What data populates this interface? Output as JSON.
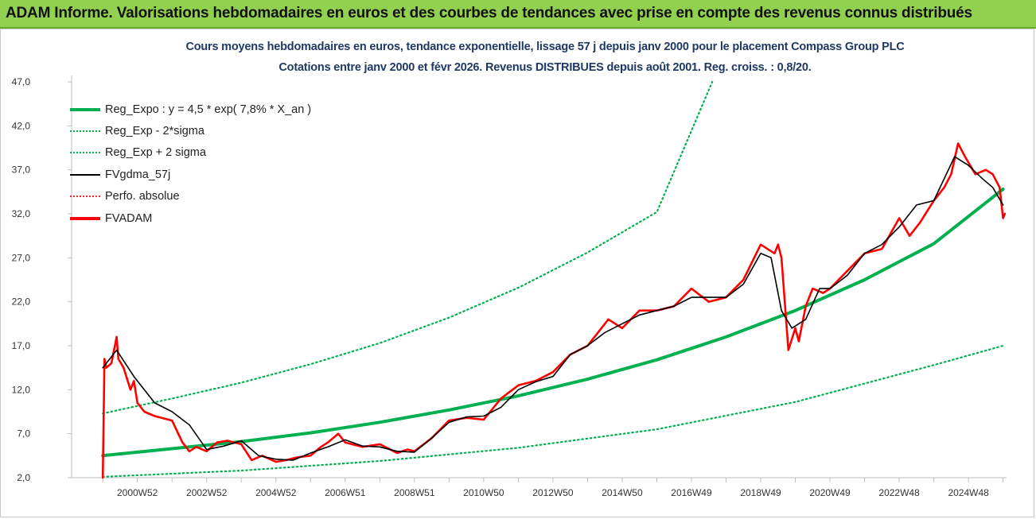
{
  "banner": {
    "title": "ADAM Informe. Valorisations hebdomadaires en euros et des courbes de tendances avec prise en compte des revenus connus distribués"
  },
  "chart_data": {
    "type": "line",
    "title": "Cours moyens hebdomadaires en euros, tendance exponentielle, lissage 57 j depuis janv 2000 pour le placement Compass Group PLC",
    "subtitle": "Cotations entre janv 2000 et févr 2026. Revenus DISTRIBUES depuis août 2001. Reg. croiss. : 0,8/20.",
    "y_ticks": [
      "2,0",
      "7,0",
      "12,0",
      "17,0",
      "22,0",
      "27,0",
      "32,0",
      "37,0",
      "42,0",
      "47,0"
    ],
    "ylim": [
      2,
      47
    ],
    "x_ticks": [
      "2000W52",
      "2002W52",
      "2004W52",
      "2006W51",
      "2008W51",
      "2010W50",
      "2012W50",
      "2014W50",
      "2016W49",
      "2018W49",
      "2020W49",
      "2022W48",
      "2024W48"
    ],
    "xlim": [
      1999.1,
      2026.1
    ],
    "legend_position": "top-left",
    "grid": false,
    "series": [
      {
        "name": "Reg_Expo : y = 4,5 * exp( 7,8% *  X_an )",
        "color": "#00b050",
        "style": "solid-thick",
        "x": [
          2000.0,
          2002.0,
          2004.0,
          2006.0,
          2008.0,
          2010.0,
          2012.0,
          2014.0,
          2016.0,
          2018.0,
          2020.0,
          2022.0,
          2024.0,
          2026.0
        ],
        "values": [
          4.5,
          5.3,
          6.1,
          7.1,
          8.3,
          9.7,
          11.3,
          13.2,
          15.4,
          18.0,
          21.0,
          24.5,
          28.6,
          34.8
        ]
      },
      {
        "name": "Reg_Exp - 2*sigma",
        "color": "#00b050",
        "style": "dotted",
        "x": [
          2000.0,
          2004.0,
          2008.0,
          2012.0,
          2016.0,
          2020.0,
          2024.0,
          2026.0
        ],
        "values": [
          2.1,
          2.8,
          3.9,
          5.4,
          7.5,
          10.6,
          14.8,
          17.0
        ]
      },
      {
        "name": "Reg_Exp + 2 sigma",
        "color": "#00b050",
        "style": "dotted",
        "x": [
          2000.0,
          2002.0,
          2004.0,
          2006.0,
          2008.0,
          2010.0,
          2012.0,
          2014.0,
          2016.0,
          2017.6
        ],
        "values": [
          9.3,
          11.0,
          12.8,
          14.9,
          17.3,
          20.2,
          23.6,
          27.6,
          32.2,
          47.0
        ]
      },
      {
        "name": "FVgdma_57j",
        "color": "#000000",
        "style": "solid",
        "x": [
          2000.0,
          2000.4,
          2000.9,
          2001.5,
          2002.0,
          2002.5,
          2003.0,
          2003.5,
          2004.0,
          2004.5,
          2005.0,
          2005.5,
          2006.0,
          2006.5,
          2007.0,
          2007.5,
          2008.0,
          2008.5,
          2009.0,
          2009.5,
          2010.0,
          2010.5,
          2011.0,
          2011.5,
          2012.0,
          2012.5,
          2013.0,
          2013.5,
          2014.0,
          2014.5,
          2015.0,
          2015.5,
          2016.0,
          2016.5,
          2017.0,
          2017.5,
          2018.0,
          2018.5,
          2019.0,
          2019.3,
          2019.6,
          2019.9,
          2020.3,
          2020.7,
          2021.0,
          2021.5,
          2022.0,
          2022.5,
          2023.0,
          2023.5,
          2024.0,
          2024.3,
          2024.6,
          2025.0,
          2025.4,
          2025.7,
          2026.0
        ],
        "values": [
          14.5,
          16.5,
          13.5,
          10.5,
          9.5,
          8.0,
          5.2,
          5.6,
          6.2,
          4.5,
          4.1,
          4.0,
          4.8,
          5.5,
          6.3,
          5.6,
          5.5,
          5.0,
          4.9,
          6.5,
          8.3,
          8.9,
          9.0,
          10.0,
          12.0,
          12.9,
          13.5,
          16.0,
          17.0,
          18.5,
          19.5,
          20.5,
          21.0,
          21.5,
          22.5,
          22.5,
          22.5,
          24.0,
          27.5,
          27.0,
          21.0,
          19.0,
          20.0,
          23.5,
          23.5,
          25.0,
          27.5,
          28.5,
          30.5,
          33.0,
          33.5,
          36.0,
          38.5,
          37.5,
          36.0,
          35.0,
          33.0
        ]
      },
      {
        "name": "Perfo. absolue",
        "color": "#e8302a",
        "style": "dotted",
        "x": [],
        "values": []
      },
      {
        "name": "FVADAM",
        "color": "#ff0000",
        "style": "solid-thick",
        "x": [
          2000.0,
          2000.05,
          2000.1,
          2000.25,
          2000.4,
          2000.45,
          2000.6,
          2000.8,
          2000.9,
          2001.0,
          2001.2,
          2001.5,
          2002.0,
          2002.3,
          2002.5,
          2002.7,
          2003.0,
          2003.3,
          2003.6,
          2004.0,
          2004.3,
          2004.6,
          2005.0,
          2005.3,
          2005.6,
          2006.0,
          2006.3,
          2006.5,
          2006.8,
          2007.0,
          2007.5,
          2008.0,
          2008.5,
          2008.8,
          2009.0,
          2009.5,
          2010.0,
          2010.5,
          2011.0,
          2011.5,
          2012.0,
          2012.5,
          2013.0,
          2013.5,
          2014.0,
          2014.3,
          2014.6,
          2015.0,
          2015.5,
          2016.0,
          2016.5,
          2017.0,
          2017.5,
          2018.0,
          2018.5,
          2019.0,
          2019.2,
          2019.4,
          2019.5,
          2019.6,
          2019.8,
          2020.0,
          2020.1,
          2020.3,
          2020.5,
          2020.8,
          2021.0,
          2021.5,
          2022.0,
          2022.5,
          2023.0,
          2023.3,
          2023.6,
          2024.0,
          2024.3,
          2024.5,
          2024.7,
          2024.9,
          2025.2,
          2025.5,
          2025.7,
          2025.9,
          2026.0,
          2026.05
        ],
        "values": [
          2.0,
          15.5,
          14.5,
          15.0,
          18.0,
          15.5,
          14.5,
          12.0,
          13.0,
          10.5,
          9.5,
          9.0,
          8.5,
          6.0,
          5.0,
          5.5,
          5.0,
          6.0,
          6.2,
          5.8,
          4.0,
          4.5,
          3.8,
          4.0,
          4.3,
          4.5,
          5.5,
          6.0,
          7.0,
          6.0,
          5.5,
          5.8,
          4.8,
          5.2,
          5.0,
          6.5,
          8.5,
          8.8,
          8.6,
          11.0,
          12.5,
          13.0,
          14.0,
          16.0,
          17.0,
          18.5,
          20.0,
          19.0,
          21.0,
          21.0,
          21.5,
          23.5,
          22.0,
          22.5,
          24.5,
          28.5,
          28.0,
          27.5,
          28.5,
          27.0,
          16.5,
          19.0,
          17.5,
          21.5,
          23.5,
          23.0,
          23.5,
          25.5,
          27.5,
          28.0,
          31.5,
          29.5,
          31.0,
          33.5,
          35.0,
          36.5,
          40.0,
          38.5,
          36.5,
          37.0,
          36.5,
          35.0,
          31.5,
          32.0
        ]
      }
    ]
  }
}
